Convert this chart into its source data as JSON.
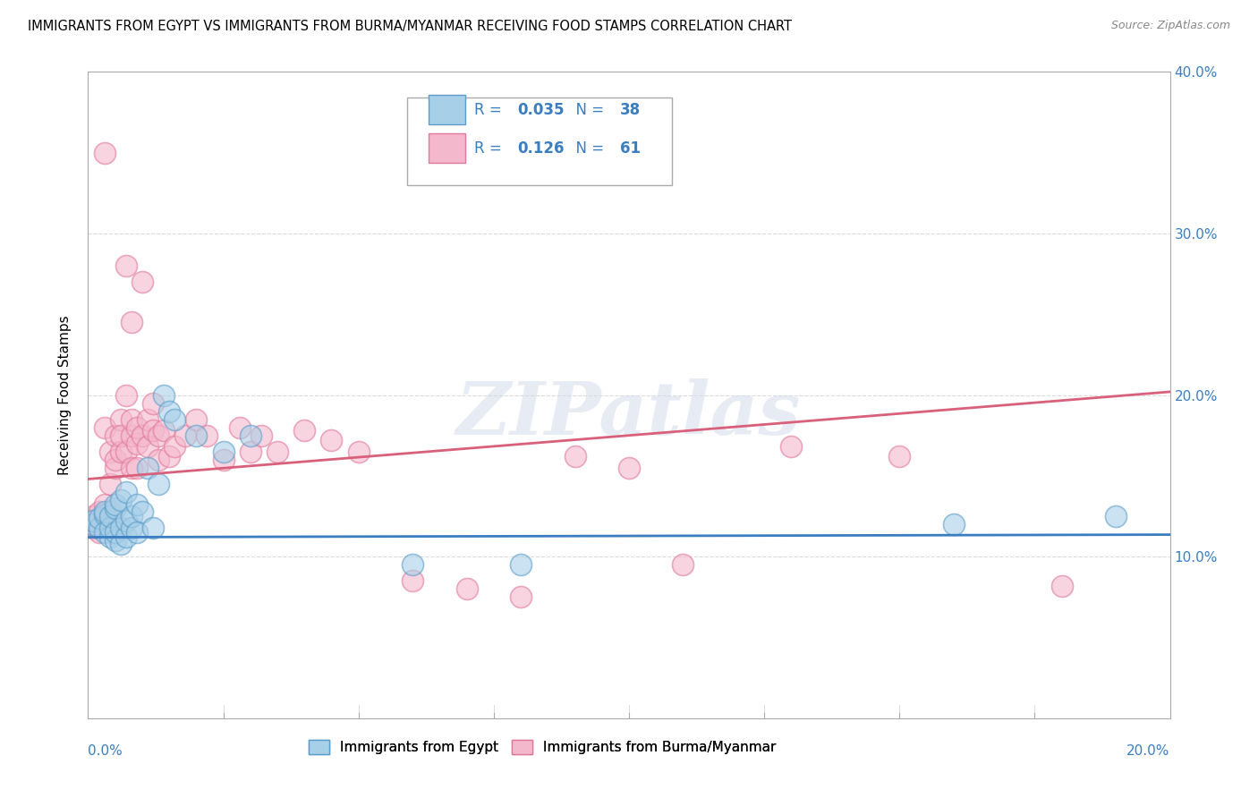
{
  "title": "IMMIGRANTS FROM EGYPT VS IMMIGRANTS FROM BURMA/MYANMAR RECEIVING FOOD STAMPS CORRELATION CHART",
  "source": "Source: ZipAtlas.com",
  "ylabel": "Receiving Food Stamps",
  "xlim": [
    0.0,
    0.2
  ],
  "ylim": [
    0.0,
    0.4
  ],
  "yticks": [
    0.1,
    0.2,
    0.3,
    0.4
  ],
  "ytick_labels": [
    "10.0%",
    "20.0%",
    "30.0%",
    "40.0%"
  ],
  "egypt_R": 0.035,
  "egypt_N": 38,
  "burma_R": 0.126,
  "burma_N": 61,
  "egypt_color": "#a8cfe8",
  "burma_color": "#f4b8cc",
  "egypt_edge_color": "#5b9dc9",
  "burma_edge_color": "#e0789a",
  "egypt_line_color": "#3a7dc0",
  "burma_line_color": "#d9607a",
  "legend_label_egypt": "Immigrants from Egypt",
  "legend_label_burma": "Immigrants from Burma/Myanmar",
  "legend_text_color": "#3a7dc0",
  "tick_color": "#3a7dc0",
  "egypt_line_intercept": 0.112,
  "egypt_line_slope": 0.008,
  "burma_line_intercept": 0.148,
  "burma_line_slope": 0.27,
  "egypt_points_x": [
    0.001,
    0.001,
    0.002,
    0.002,
    0.003,
    0.003,
    0.003,
    0.004,
    0.004,
    0.004,
    0.005,
    0.005,
    0.005,
    0.005,
    0.006,
    0.006,
    0.006,
    0.007,
    0.007,
    0.007,
    0.008,
    0.008,
    0.009,
    0.009,
    0.01,
    0.011,
    0.012,
    0.013,
    0.014,
    0.015,
    0.016,
    0.02,
    0.025,
    0.03,
    0.06,
    0.08,
    0.16,
    0.19
  ],
  "egypt_points_y": [
    0.12,
    0.122,
    0.118,
    0.124,
    0.126,
    0.115,
    0.128,
    0.112,
    0.118,
    0.125,
    0.13,
    0.11,
    0.132,
    0.115,
    0.108,
    0.135,
    0.118,
    0.14,
    0.112,
    0.122,
    0.118,
    0.125,
    0.132,
    0.115,
    0.128,
    0.155,
    0.118,
    0.145,
    0.2,
    0.19,
    0.185,
    0.175,
    0.165,
    0.175,
    0.095,
    0.095,
    0.12,
    0.125
  ],
  "burma_points_x": [
    0.001,
    0.001,
    0.001,
    0.002,
    0.002,
    0.002,
    0.003,
    0.003,
    0.003,
    0.003,
    0.004,
    0.004,
    0.004,
    0.005,
    0.005,
    0.005,
    0.005,
    0.006,
    0.006,
    0.006,
    0.007,
    0.007,
    0.007,
    0.008,
    0.008,
    0.008,
    0.008,
    0.009,
    0.009,
    0.009,
    0.01,
    0.01,
    0.011,
    0.011,
    0.012,
    0.012,
    0.013,
    0.013,
    0.014,
    0.015,
    0.016,
    0.018,
    0.02,
    0.022,
    0.025,
    0.028,
    0.03,
    0.032,
    0.035,
    0.04,
    0.045,
    0.05,
    0.06,
    0.07,
    0.08,
    0.09,
    0.1,
    0.11,
    0.13,
    0.15,
    0.18
  ],
  "burma_points_y": [
    0.12,
    0.125,
    0.118,
    0.128,
    0.122,
    0.115,
    0.35,
    0.18,
    0.125,
    0.132,
    0.165,
    0.128,
    0.145,
    0.175,
    0.155,
    0.16,
    0.118,
    0.185,
    0.165,
    0.175,
    0.28,
    0.165,
    0.2,
    0.175,
    0.185,
    0.155,
    0.245,
    0.17,
    0.18,
    0.155,
    0.175,
    0.27,
    0.185,
    0.168,
    0.178,
    0.195,
    0.16,
    0.175,
    0.178,
    0.162,
    0.168,
    0.175,
    0.185,
    0.175,
    0.16,
    0.18,
    0.165,
    0.175,
    0.165,
    0.178,
    0.172,
    0.165,
    0.085,
    0.08,
    0.075,
    0.162,
    0.155,
    0.095,
    0.168,
    0.162,
    0.082
  ],
  "watermark": "ZIPatlas",
  "background_color": "#ffffff",
  "grid_color": "#cccccc"
}
